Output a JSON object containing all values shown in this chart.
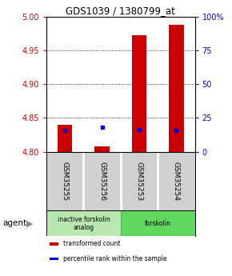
{
  "title": "GDS1039 / 1380799_at",
  "samples": [
    "GSM35255",
    "GSM35256",
    "GSM35253",
    "GSM35254"
  ],
  "red_values": [
    4.84,
    4.808,
    4.972,
    4.988
  ],
  "blue_values": [
    15.5,
    18.0,
    16.5,
    16.0
  ],
  "ylim_left": [
    4.8,
    5.0
  ],
  "ylim_right": [
    0,
    100
  ],
  "yticks_left": [
    4.8,
    4.85,
    4.9,
    4.95,
    5.0
  ],
  "yticks_right": [
    0,
    25,
    50,
    75,
    100
  ],
  "groups": [
    {
      "label": "inactive forskolin\nanalog",
      "cols": [
        0,
        1
      ],
      "color": "#b8e8b0"
    },
    {
      "label": "forskolin",
      "cols": [
        2,
        3
      ],
      "color": "#60d860"
    }
  ],
  "agent_label": "agent",
  "legend": [
    {
      "color": "#cc0000",
      "label": "transformed count"
    },
    {
      "color": "#0000cc",
      "label": "percentile rank within the sample"
    }
  ],
  "bar_color": "#cc0000",
  "dot_color": "#0000cc",
  "bar_width": 0.4,
  "background_plot": "#ffffff",
  "sample_bg": "#d0d0d0",
  "title_color": "#000000",
  "left_tick_color": "#cc0000",
  "right_tick_color": "#0000cc"
}
